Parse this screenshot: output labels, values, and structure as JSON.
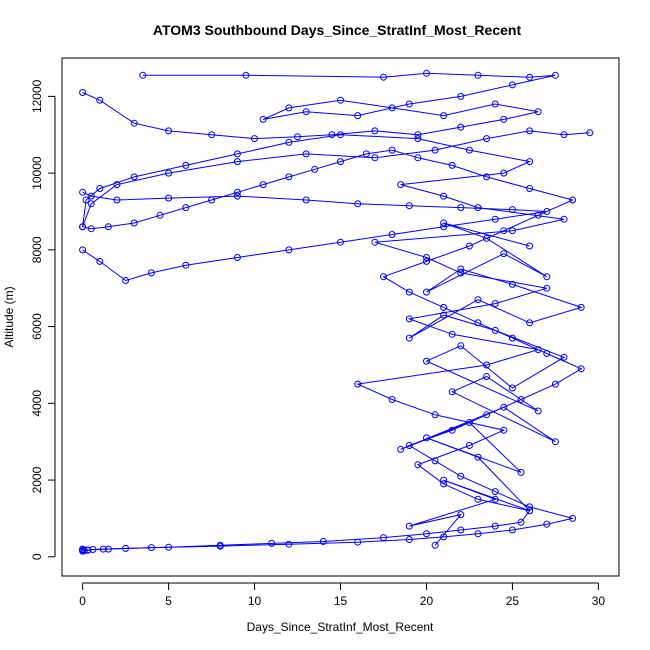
{
  "chart_data": {
    "type": "line",
    "title": "ATOM3 Southbound Days_Since_StratInf_Most_Recent",
    "xlabel": "Days_Since_StratInf_Most_Recent",
    "ylabel": "Altitude (m)",
    "xlim": [
      -1.2,
      31.2
    ],
    "ylim": [
      -500,
      13000
    ],
    "xticks": [
      0,
      5,
      10,
      15,
      20,
      25,
      30
    ],
    "yticks": [
      0,
      2000,
      4000,
      6000,
      8000,
      10000,
      12000
    ],
    "xtick_labels": [
      "0",
      "5",
      "10",
      "15",
      "20",
      "25",
      "30"
    ],
    "ytick_labels": [
      "0",
      "2000",
      "4000",
      "6000",
      "8000",
      "10000",
      "12000"
    ],
    "series_color": "#0000ff",
    "marker": "open-circle",
    "series": [
      {
        "x": [
          0.0,
          0.0,
          0.1,
          0.3,
          0.6,
          1.2,
          2.5,
          5.0,
          8.0,
          11.0,
          14.0,
          17.5,
          20.0,
          22.0,
          24.0,
          25.5,
          26.0,
          23.0,
          21.0,
          19.5,
          22.5,
          24.5,
          20.5,
          18.0,
          16.0,
          23.5,
          26.5,
          21.5,
          19.0,
          24.0,
          27.0,
          22.0,
          20.0,
          17.0,
          25.0,
          28.0,
          23.0,
          21.0,
          18.5,
          24.5,
          26.0,
          22.5,
          19.5,
          15.0,
          12.0,
          9.0,
          6.0,
          3.0,
          1.0,
          0.2,
          0.0,
          0.0,
          0.5,
          2.0,
          5.0,
          9.0,
          13.0,
          17.0,
          20.5,
          23.5,
          26.0,
          28.0,
          29.5
        ],
        "y": [
          150,
          180,
          160,
          170,
          190,
          200,
          220,
          250,
          300,
          350,
          400,
          500,
          600,
          700,
          800,
          900,
          1200,
          1500,
          1900,
          2400,
          2900,
          3300,
          3700,
          4100,
          4500,
          5000,
          5400,
          5800,
          6200,
          6600,
          7000,
          7400,
          7800,
          8200,
          8500,
          8800,
          9100,
          9400,
          9700,
          10000,
          10300,
          10600,
          10900,
          11000,
          10800,
          10500,
          10200,
          9900,
          9600,
          9300,
          8600,
          8600,
          9200,
          9700,
          10000,
          10300,
          10500,
          10400,
          10600,
          10900,
          11100,
          11000,
          11050
        ]
      },
      {
        "x": [
          0.0,
          0.3,
          1.5,
          4.0,
          8.0,
          12.0,
          16.0,
          19.0,
          21.0,
          23.0,
          25.0,
          27.0,
          28.5,
          26.0,
          24.0,
          22.0,
          20.5,
          19.0,
          21.5,
          23.5,
          25.5,
          27.5,
          29.0,
          27.0,
          25.0,
          23.0,
          21.0,
          19.0,
          17.5,
          20.0,
          22.5,
          24.5,
          26.5,
          28.5,
          26.0,
          23.5,
          21.5,
          19.5,
          18.0,
          16.5,
          15.0,
          13.5,
          12.0,
          10.5,
          9.0,
          7.5,
          6.0,
          4.5,
          3.0,
          1.5,
          0.5,
          0.0
        ],
        "y": [
          200,
          180,
          200,
          240,
          280,
          330,
          380,
          450,
          520,
          600,
          700,
          850,
          1000,
          1300,
          1700,
          2100,
          2500,
          2900,
          3300,
          3700,
          4100,
          4500,
          4900,
          5300,
          5700,
          6100,
          6500,
          6900,
          7300,
          7700,
          8100,
          8500,
          8900,
          9300,
          9600,
          9900,
          10200,
          10400,
          10600,
          10500,
          10300,
          10100,
          9900,
          9700,
          9500,
          9300,
          9100,
          8900,
          8700,
          8600,
          8550,
          8600
        ]
      },
      {
        "x": [
          3.5,
          9.5,
          17.5,
          20.0,
          23.0,
          26.0,
          27.5,
          25.0,
          22.0,
          19.0,
          16.0,
          13.0,
          10.5,
          12.0,
          15.0,
          18.0,
          21.0,
          24.0,
          26.5,
          24.5,
          22.0,
          19.5,
          17.0,
          14.5,
          12.5,
          10.0,
          7.5,
          5.0,
          3.0,
          1.0,
          0.0
        ],
        "y": [
          12550,
          12550,
          12500,
          12600,
          12550,
          12500,
          12550,
          12300,
          12000,
          11800,
          11500,
          11600,
          11400,
          11700,
          11900,
          11700,
          11500,
          11800,
          11600,
          11400,
          11200,
          11000,
          11100,
          11000,
          10950,
          10900,
          11000,
          11100,
          11300,
          11900,
          12100
        ]
      },
      {
        "x": [
          0.0,
          0.5,
          2.0,
          5.0,
          9.0,
          13.0,
          16.0,
          19.0,
          22.0,
          25.0,
          27.0,
          24.0,
          21.0,
          18.0,
          15.0,
          12.0,
          9.0,
          6.0,
          4.0,
          2.5,
          1.0,
          0.0
        ],
        "y": [
          9500,
          9400,
          9300,
          9350,
          9400,
          9300,
          9200,
          9150,
          9100,
          9050,
          9000,
          8800,
          8600,
          8400,
          8200,
          8000,
          7800,
          7600,
          7400,
          7200,
          7700,
          8000
        ]
      },
      {
        "x": [
          20.5,
          22.0,
          19.0,
          24.0,
          21.0,
          26.0,
          23.0,
          20.0,
          25.5,
          22.5,
          18.5,
          24.5,
          27.5,
          21.5,
          23.5,
          26.5,
          20.0,
          22.0,
          25.0,
          28.0,
          24.0,
          21.0,
          19.0,
          23.0,
          26.0,
          29.0,
          25.0,
          22.0,
          20.0,
          24.5,
          27.0,
          23.5,
          21.0,
          26.0
        ],
        "y": [
          300,
          1100,
          800,
          1500,
          2000,
          1200,
          2600,
          3100,
          2200,
          3500,
          2800,
          3900,
          3000,
          4300,
          4700,
          3800,
          5100,
          5500,
          4400,
          5200,
          5900,
          6300,
          5700,
          6700,
          6100,
          6500,
          7100,
          7500,
          6900,
          7900,
          7300,
          8300,
          8700,
          8100
        ]
      }
    ]
  }
}
